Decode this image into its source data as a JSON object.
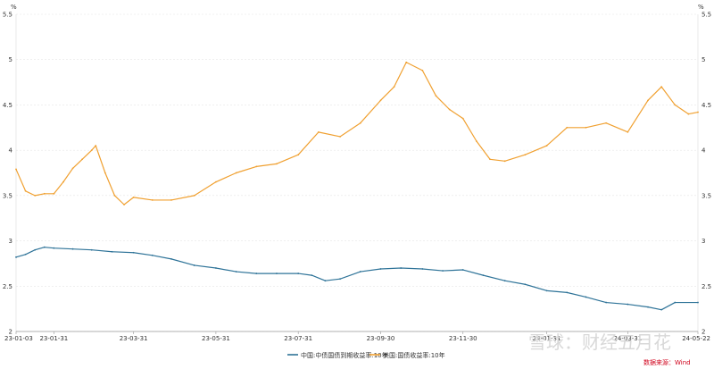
{
  "chart_data": {
    "type": "line",
    "y_unit_left": "%",
    "y_unit_right": "%",
    "ylim": [
      2,
      5.5
    ],
    "yticks": [
      2,
      2.5,
      3,
      3.5,
      4,
      4.5,
      5,
      5.5
    ],
    "ytick_labels": [
      "2",
      "2.5",
      "3",
      "3.5",
      "4",
      "4.5",
      "5",
      "5.5"
    ],
    "right_ytick_labels": [
      "2",
      "2.5",
      "3",
      "3.5",
      "4",
      "4.5",
      "5",
      "5.5"
    ],
    "xlim": [
      "2023-01-03",
      "2024-05-22"
    ],
    "xticks": [
      "2023-01-03",
      "2023-01-31",
      "2023-03-31",
      "2023-05-31",
      "2023-07-31",
      "2023-09-30",
      "2023-11-30",
      "2024-01-31",
      "2024-03-31",
      "2024-05-22"
    ],
    "xtick_labels": [
      "23-01-03",
      "23-01-31",
      "23-03-31",
      "23-05-31",
      "23-07-31",
      "23-09-30",
      "23-11-30",
      "24-01-31",
      "24-03-31",
      "24-05-22"
    ],
    "grid": "horizontal",
    "legend_position": "bottom",
    "series": [
      {
        "name": "中国:中债国债到期收益率:10年",
        "color": "#2e7398",
        "points": [
          [
            "2023-01-03",
            2.82
          ],
          [
            "2023-01-10",
            2.85
          ],
          [
            "2023-01-17",
            2.9
          ],
          [
            "2023-01-24",
            2.93
          ],
          [
            "2023-01-31",
            2.92
          ],
          [
            "2023-02-14",
            2.91
          ],
          [
            "2023-02-28",
            2.9
          ],
          [
            "2023-03-15",
            2.88
          ],
          [
            "2023-03-31",
            2.87
          ],
          [
            "2023-04-14",
            2.84
          ],
          [
            "2023-04-28",
            2.8
          ],
          [
            "2023-05-15",
            2.73
          ],
          [
            "2023-05-31",
            2.7
          ],
          [
            "2023-06-15",
            2.66
          ],
          [
            "2023-06-30",
            2.64
          ],
          [
            "2023-07-15",
            2.64
          ],
          [
            "2023-07-31",
            2.64
          ],
          [
            "2023-08-10",
            2.62
          ],
          [
            "2023-08-20",
            2.56
          ],
          [
            "2023-08-31",
            2.58
          ],
          [
            "2023-09-15",
            2.66
          ],
          [
            "2023-09-30",
            2.69
          ],
          [
            "2023-10-15",
            2.7
          ],
          [
            "2023-10-31",
            2.69
          ],
          [
            "2023-11-15",
            2.67
          ],
          [
            "2023-11-30",
            2.68
          ],
          [
            "2023-12-15",
            2.62
          ],
          [
            "2023-12-31",
            2.56
          ],
          [
            "2024-01-15",
            2.52
          ],
          [
            "2024-01-31",
            2.45
          ],
          [
            "2024-02-15",
            2.43
          ],
          [
            "2024-02-29",
            2.38
          ],
          [
            "2024-03-15",
            2.32
          ],
          [
            "2024-03-31",
            2.3
          ],
          [
            "2024-04-15",
            2.27
          ],
          [
            "2024-04-25",
            2.24
          ],
          [
            "2024-05-05",
            2.32
          ],
          [
            "2024-05-22",
            2.32
          ]
        ]
      },
      {
        "name": "美国:国债收益率:10年",
        "color": "#f0a030",
        "points": [
          [
            "2023-01-03",
            3.79
          ],
          [
            "2023-01-10",
            3.55
          ],
          [
            "2023-01-17",
            3.5
          ],
          [
            "2023-01-24",
            3.52
          ],
          [
            "2023-01-31",
            3.52
          ],
          [
            "2023-02-07",
            3.65
          ],
          [
            "2023-02-14",
            3.8
          ],
          [
            "2023-02-21",
            3.9
          ],
          [
            "2023-02-28",
            4.0
          ],
          [
            "2023-03-03",
            4.05
          ],
          [
            "2023-03-10",
            3.75
          ],
          [
            "2023-03-17",
            3.5
          ],
          [
            "2023-03-24",
            3.4
          ],
          [
            "2023-03-31",
            3.48
          ],
          [
            "2023-04-14",
            3.45
          ],
          [
            "2023-04-28",
            3.45
          ],
          [
            "2023-05-15",
            3.5
          ],
          [
            "2023-05-31",
            3.65
          ],
          [
            "2023-06-15",
            3.75
          ],
          [
            "2023-06-30",
            3.82
          ],
          [
            "2023-07-15",
            3.85
          ],
          [
            "2023-07-31",
            3.95
          ],
          [
            "2023-08-15",
            4.2
          ],
          [
            "2023-08-31",
            4.15
          ],
          [
            "2023-09-15",
            4.3
          ],
          [
            "2023-09-30",
            4.55
          ],
          [
            "2023-10-10",
            4.7
          ],
          [
            "2023-10-19",
            4.97
          ],
          [
            "2023-10-31",
            4.88
          ],
          [
            "2023-11-10",
            4.6
          ],
          [
            "2023-11-20",
            4.45
          ],
          [
            "2023-11-30",
            4.35
          ],
          [
            "2023-12-10",
            4.1
          ],
          [
            "2023-12-20",
            3.9
          ],
          [
            "2023-12-31",
            3.88
          ],
          [
            "2024-01-15",
            3.95
          ],
          [
            "2024-01-31",
            4.05
          ],
          [
            "2024-02-15",
            4.25
          ],
          [
            "2024-02-29",
            4.25
          ],
          [
            "2024-03-15",
            4.3
          ],
          [
            "2024-03-31",
            4.2
          ],
          [
            "2024-04-15",
            4.55
          ],
          [
            "2024-04-25",
            4.7
          ],
          [
            "2024-05-05",
            4.5
          ],
          [
            "2024-05-15",
            4.4
          ],
          [
            "2024-05-22",
            4.42
          ]
        ]
      }
    ],
    "source_note": "数据来源：Wind"
  },
  "watermark": "雪球：财经五月花"
}
